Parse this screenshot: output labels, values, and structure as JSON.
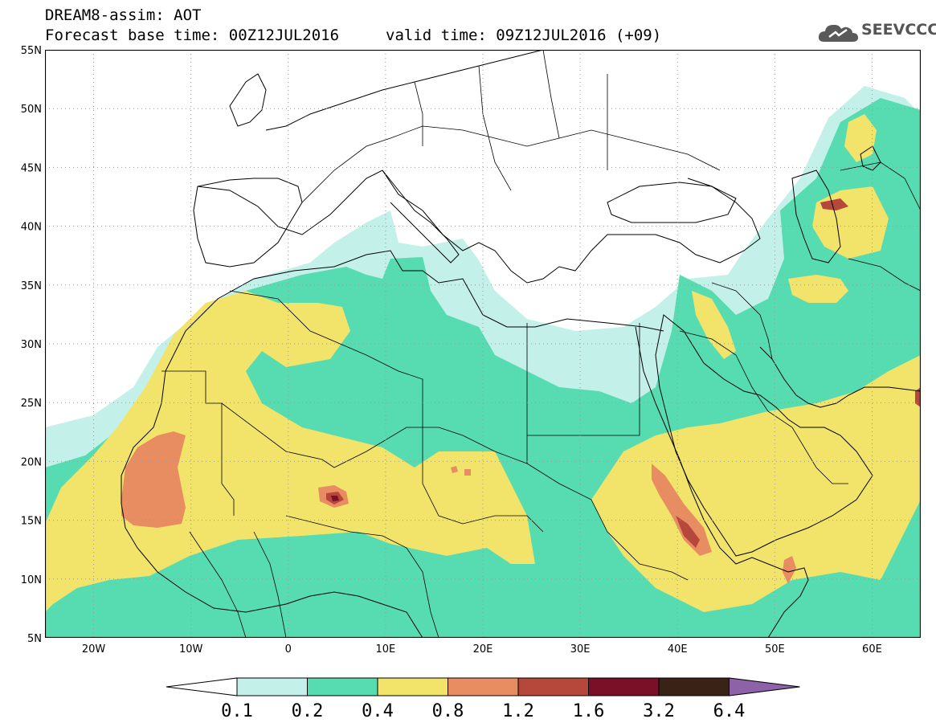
{
  "header": {
    "title": "DREAM8-assim: AOT",
    "base_time": "Forecast base time: 00Z12JUL2016",
    "valid_time": "valid time: 09Z12JUL2016 (+09)",
    "logo_text": "SEEVCCC"
  },
  "map": {
    "lat_labels": [
      "55N",
      "50N",
      "45N",
      "40N",
      "35N",
      "30N",
      "25N",
      "20N",
      "15N",
      "10N",
      "5N"
    ],
    "lon_labels": [
      "20W",
      "10W",
      "0",
      "10E",
      "20E",
      "30E",
      "40E",
      "50E",
      "60E"
    ],
    "lat_range": [
      5,
      55
    ],
    "lon_range": [
      -25,
      65
    ],
    "grid": "dotted"
  },
  "colorbar": {
    "levels": [
      "0.1",
      "0.2",
      "0.4",
      "0.8",
      "1.2",
      "1.6",
      "3.2",
      "6.4"
    ],
    "colors": [
      "#c3f0e8",
      "#56dcb0",
      "#f2e36a",
      "#e88c62",
      "#b5483a",
      "#7a0f28",
      "#3a2316",
      "#8d62a8"
    ]
  },
  "colors": {
    "c1": "#c3f0e8",
    "c2": "#56dcb0",
    "c3": "#f2e36a",
    "c4": "#e88c62",
    "c5": "#b5483a",
    "c6": "#7a0f28",
    "c7": "#3a2316",
    "c8": "#8d62a8"
  }
}
